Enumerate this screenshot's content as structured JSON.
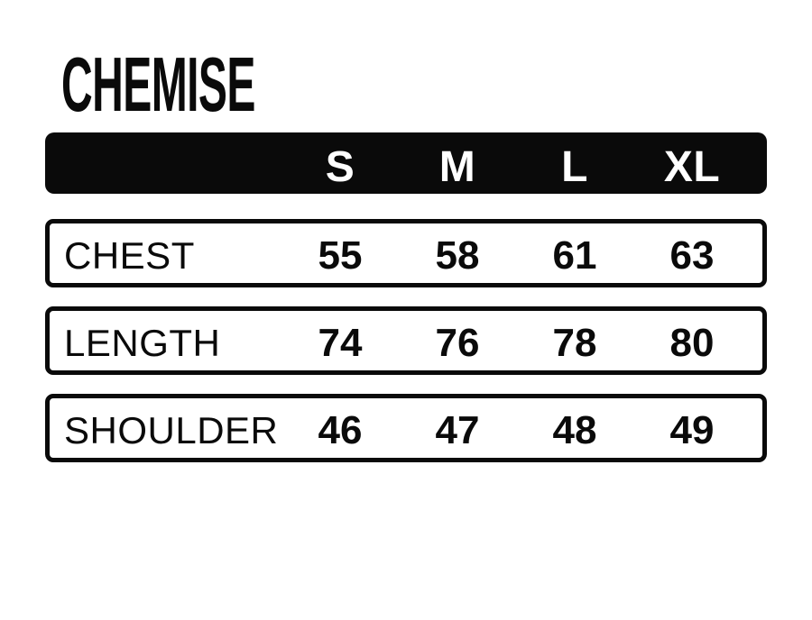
{
  "title": "CHEMISE",
  "colors": {
    "background": "#ffffff",
    "header_bg": "#0a0a0a",
    "header_text": "#ffffff",
    "row_bg": "#ffffff",
    "row_border": "#0a0a0a",
    "text": "#0a0a0a"
  },
  "chart_data": {
    "type": "table",
    "title": "CHEMISE",
    "columns": [
      "S",
      "M",
      "L",
      "XL"
    ],
    "rows": [
      {
        "label": "CHEST",
        "values": [
          "55",
          "58",
          "61",
          "63"
        ]
      },
      {
        "label": "LENGTH",
        "values": [
          "74",
          "76",
          "78",
          "80"
        ]
      },
      {
        "label": "SHOULDER",
        "values": [
          "46",
          "47",
          "48",
          "49"
        ]
      }
    ],
    "layout": {
      "header_style": "black-bar-white-text",
      "row_style": "white-bar-black-border",
      "grid": false
    }
  }
}
